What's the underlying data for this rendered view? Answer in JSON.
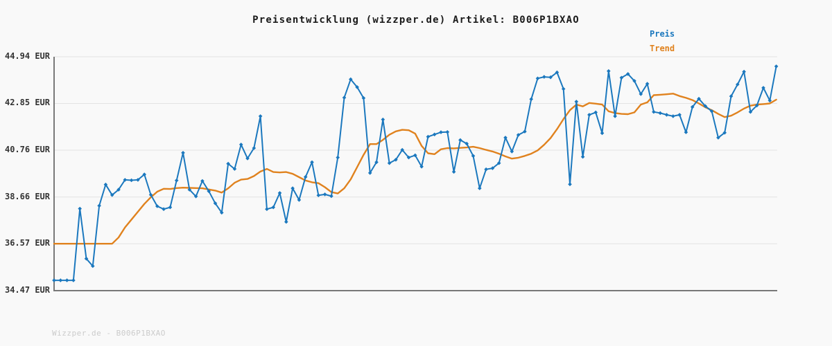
{
  "page": {
    "title": "Preisentwicklung (wizzper.de) Artikel: B006P1BXAO",
    "footer": "Wizzper.de - B006P1BXAO"
  },
  "colors": {
    "background": "#f9f9f9",
    "price_line": "#1b78be",
    "trend_line": "#e0821e",
    "gridline": "#e3e3e3",
    "axis": "#787878",
    "title_text": "#1a1a1a",
    "tick_text": "#333333",
    "footer_text": "#cbcbcb"
  },
  "chart_data": {
    "type": "line",
    "title": "Preisentwicklung (wizzper.de) Artikel: B006P1BXAO",
    "xlabel": "",
    "ylabel": "EUR",
    "ylim": [
      34.47,
      44.94
    ],
    "x_axis_labels": "none",
    "grid": "horizontal",
    "legend_position": "top-right",
    "y_ticks": [
      {
        "value": 44.94,
        "label": "44.94 EUR"
      },
      {
        "value": 42.85,
        "label": "42.85 EUR"
      },
      {
        "value": 40.76,
        "label": "40.76 EUR"
      },
      {
        "value": 38.66,
        "label": "38.66 EUR"
      },
      {
        "value": 36.57,
        "label": "36.57 EUR"
      },
      {
        "value": 34.47,
        "label": "34.47 EUR"
      }
    ],
    "series": [
      {
        "name": "Preis",
        "color": "#1b78be",
        "marker": "diamond",
        "values": [
          34.93,
          34.93,
          34.93,
          34.93,
          38.14,
          35.9,
          35.57,
          38.27,
          39.22,
          38.75,
          38.99,
          39.43,
          39.41,
          39.43,
          39.67,
          38.76,
          38.25,
          38.12,
          38.2,
          39.4,
          40.64,
          38.99,
          38.69,
          39.38,
          38.92,
          38.38,
          37.96,
          40.15,
          39.92,
          41.01,
          40.39,
          40.85,
          42.28,
          38.12,
          38.2,
          38.84,
          37.55,
          39.05,
          38.53,
          39.56,
          40.22,
          38.74,
          38.78,
          38.7,
          40.43,
          43.11,
          43.93,
          43.58,
          43.09,
          39.74,
          40.22,
          42.13,
          40.18,
          40.33,
          40.77,
          40.43,
          40.53,
          40.02,
          41.36,
          41.46,
          41.56,
          41.57,
          39.79,
          41.21,
          41.05,
          40.5,
          39.05,
          39.9,
          39.95,
          40.18,
          41.32,
          40.7,
          41.44,
          41.59,
          43.04,
          43.97,
          44.04,
          44.02,
          44.24,
          43.5,
          39.23,
          42.93,
          40.46,
          42.34,
          42.45,
          41.52,
          44.3,
          42.28,
          44.0,
          44.17,
          43.86,
          43.27,
          43.73,
          42.47,
          42.42,
          42.34,
          42.28,
          42.34,
          41.56,
          42.69,
          43.06,
          42.73,
          42.5,
          41.32,
          41.54,
          43.17,
          43.7,
          44.27,
          42.47,
          42.76,
          43.55,
          42.98,
          44.51
        ]
      },
      {
        "name": "Trend",
        "color": "#e0821e",
        "marker": "none",
        "values": [
          36.57,
          36.57,
          36.57,
          36.57,
          36.57,
          36.57,
          36.57,
          36.57,
          36.57,
          36.57,
          36.85,
          37.3,
          37.65,
          38.0,
          38.35,
          38.65,
          38.9,
          39.03,
          39.02,
          39.06,
          39.08,
          39.07,
          39.06,
          39.05,
          39.0,
          38.95,
          38.86,
          39.05,
          39.3,
          39.44,
          39.47,
          39.6,
          39.8,
          39.92,
          39.78,
          39.76,
          39.78,
          39.7,
          39.55,
          39.4,
          39.32,
          39.28,
          39.1,
          38.88,
          38.82,
          39.05,
          39.45,
          40.0,
          40.55,
          41.03,
          41.03,
          41.22,
          41.45,
          41.6,
          41.67,
          41.65,
          41.5,
          40.95,
          40.62,
          40.58,
          40.8,
          40.85,
          40.84,
          40.86,
          40.88,
          40.91,
          40.85,
          40.77,
          40.7,
          40.6,
          40.48,
          40.38,
          40.42,
          40.5,
          40.6,
          40.75,
          41.0,
          41.3,
          41.7,
          42.15,
          42.55,
          42.8,
          42.72,
          42.87,
          42.84,
          42.8,
          42.5,
          42.42,
          42.38,
          42.37,
          42.45,
          42.8,
          42.9,
          43.22,
          43.24,
          43.26,
          43.29,
          43.18,
          43.1,
          43.0,
          42.85,
          42.68,
          42.55,
          42.38,
          42.24,
          42.3,
          42.45,
          42.62,
          42.75,
          42.8,
          42.82,
          42.85,
          43.02
        ]
      }
    ]
  }
}
